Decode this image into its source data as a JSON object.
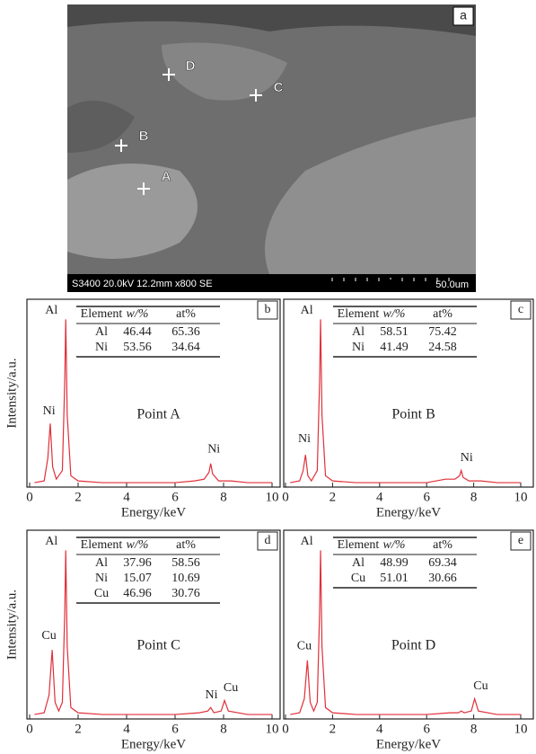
{
  "image": {
    "label": "a",
    "points": [
      {
        "label": "D"
      },
      {
        "label": "C"
      },
      {
        "label": "B"
      },
      {
        "label": "A"
      }
    ],
    "info": "S3400 20.0kV 12.2mm x800 SE",
    "scale": "50.0um"
  },
  "chart_data": [
    {
      "type": "line",
      "label": "b",
      "title": "Point A",
      "xlabel": "Energy/keV",
      "ylabel": "Intensity/a.u.",
      "xlim": [
        0,
        10
      ],
      "xticks": [
        0,
        2,
        4,
        6,
        8,
        10
      ],
      "ylim": [
        0,
        105
      ],
      "color": "#e0303a",
      "x": [
        0.2,
        0.6,
        0.75,
        0.85,
        0.95,
        1.1,
        1.35,
        1.45,
        1.49,
        1.55,
        1.7,
        2.0,
        3.0,
        4.0,
        5.0,
        6.0,
        6.8,
        7.2,
        7.4,
        7.47,
        7.55,
        7.8,
        8.3,
        9.0,
        10.0
      ],
      "values": [
        1,
        2,
        15,
        35,
        10,
        3,
        8,
        60,
        95,
        40,
        5,
        2,
        1,
        1,
        1,
        1,
        2,
        3,
        7,
        12,
        6,
        2,
        2,
        1,
        1
      ],
      "annotations": [
        {
          "text": "Al",
          "x": 0.9,
          "y": 100
        },
        {
          "text": "Ni",
          "x": 0.8,
          "y": 42
        },
        {
          "text": "Ni",
          "x": 7.6,
          "y": 20
        }
      ],
      "table": {
        "header": [
          "Element",
          "w/%",
          "at%"
        ],
        "rows": [
          [
            "Al",
            "46.44",
            "65.36"
          ],
          [
            "Ni",
            "53.56",
            "34.64"
          ]
        ]
      }
    },
    {
      "type": "line",
      "label": "c",
      "title": "Point B",
      "xlabel": "Energy/keV",
      "xlim": [
        0,
        10
      ],
      "xticks": [
        0,
        2,
        4,
        6,
        8,
        10
      ],
      "ylim": [
        0,
        105
      ],
      "color": "#e0303a",
      "x": [
        0.2,
        0.6,
        0.75,
        0.85,
        0.95,
        1.1,
        1.35,
        1.45,
        1.49,
        1.55,
        1.7,
        2.0,
        3.0,
        4.0,
        5.0,
        6.0,
        6.8,
        7.2,
        7.4,
        7.47,
        7.55,
        7.8,
        8.3,
        9.0,
        10.0
      ],
      "values": [
        1,
        2,
        8,
        17,
        5,
        2,
        8,
        60,
        95,
        40,
        5,
        2,
        1,
        1,
        1,
        1,
        3,
        3,
        5,
        8,
        4,
        2,
        2,
        1,
        1
      ],
      "annotations": [
        {
          "text": "Al",
          "x": 0.9,
          "y": 100
        },
        {
          "text": "Ni",
          "x": 0.8,
          "y": 26
        },
        {
          "text": "Ni",
          "x": 7.7,
          "y": 15
        }
      ],
      "table": {
        "header": [
          "Element",
          "w/%",
          "at%"
        ],
        "rows": [
          [
            "Al",
            "58.51",
            "75.42"
          ],
          [
            "Ni",
            "41.49",
            "24.58"
          ]
        ]
      }
    },
    {
      "type": "line",
      "label": "d",
      "title": "Point C",
      "xlabel": "Energy/keV",
      "ylabel": "Intensity/a.u.",
      "xlim": [
        0,
        10
      ],
      "xticks": [
        0,
        2,
        4,
        6,
        8,
        10
      ],
      "ylim": [
        0,
        105
      ],
      "color": "#e0303a",
      "x": [
        0.2,
        0.6,
        0.8,
        0.93,
        1.05,
        1.2,
        1.35,
        1.45,
        1.49,
        1.55,
        1.7,
        2.0,
        3.0,
        4.0,
        5.0,
        6.0,
        7.0,
        7.35,
        7.47,
        7.6,
        7.9,
        8.04,
        8.2,
        9.0,
        10.0
      ],
      "values": [
        1,
        2,
        12,
        38,
        8,
        3,
        8,
        60,
        95,
        40,
        5,
        2,
        1,
        1,
        1,
        1,
        2,
        3,
        5,
        2,
        3,
        9,
        3,
        1,
        1
      ],
      "annotations": [
        {
          "text": "Al",
          "x": 0.9,
          "y": 100
        },
        {
          "text": "Cu",
          "x": 0.8,
          "y": 46
        },
        {
          "text": "Ni",
          "x": 7.5,
          "y": 12
        },
        {
          "text": "Cu",
          "x": 8.3,
          "y": 16
        }
      ],
      "table": {
        "header": [
          "Element",
          "w/%",
          "at%"
        ],
        "rows": [
          [
            "Al",
            "37.96",
            "58.56"
          ],
          [
            "Ni",
            "15.07",
            "10.69"
          ],
          [
            "Cu",
            "46.96",
            "30.76"
          ]
        ]
      }
    },
    {
      "type": "line",
      "label": "e",
      "title": "Point D",
      "xlabel": "Energy/keV",
      "xlim": [
        0,
        10
      ],
      "xticks": [
        0,
        2,
        4,
        6,
        8,
        10
      ],
      "ylim": [
        0,
        105
      ],
      "color": "#e0303a",
      "x": [
        0.2,
        0.6,
        0.8,
        0.93,
        1.05,
        1.2,
        1.35,
        1.45,
        1.49,
        1.55,
        1.7,
        2.0,
        3.0,
        4.0,
        5.0,
        6.0,
        7.0,
        7.35,
        7.47,
        7.6,
        7.9,
        8.04,
        8.2,
        9.0,
        10.0
      ],
      "values": [
        1,
        2,
        10,
        32,
        8,
        3,
        8,
        60,
        95,
        40,
        5,
        2,
        1,
        1,
        1,
        1,
        2,
        2,
        3,
        2,
        3,
        10,
        3,
        1,
        1
      ],
      "annotations": [
        {
          "text": "Al",
          "x": 0.9,
          "y": 100
        },
        {
          "text": "Cu",
          "x": 0.8,
          "y": 40
        },
        {
          "text": "Cu",
          "x": 8.3,
          "y": 17
        }
      ],
      "table": {
        "header": [
          "Element",
          "w/%",
          "at%"
        ],
        "rows": [
          [
            "Al",
            "48.99",
            "69.34"
          ],
          [
            "Cu",
            "51.01",
            "30.66"
          ]
        ]
      }
    }
  ]
}
